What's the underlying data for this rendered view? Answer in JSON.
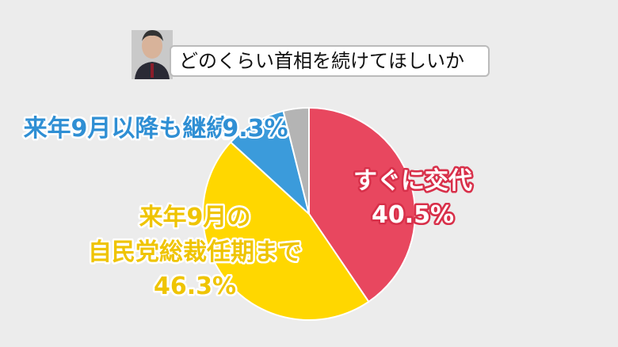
{
  "chart_data": {
    "type": "pie",
    "title": "どのくらい首相を続けてほしいか",
    "categories": [
      "すぐに交代",
      "来年9月の\n自民党総裁任期まで",
      "来年9月以降も継続",
      null
    ],
    "values": [
      40.5,
      46.3,
      9.3,
      3.9
    ],
    "value_labels": [
      "40.5%",
      "46.3%",
      "9.3%",
      null
    ],
    "colors": [
      "#e8475f",
      "#ffd700",
      "#3b9bdb",
      "#b4b4b4"
    ]
  }
}
